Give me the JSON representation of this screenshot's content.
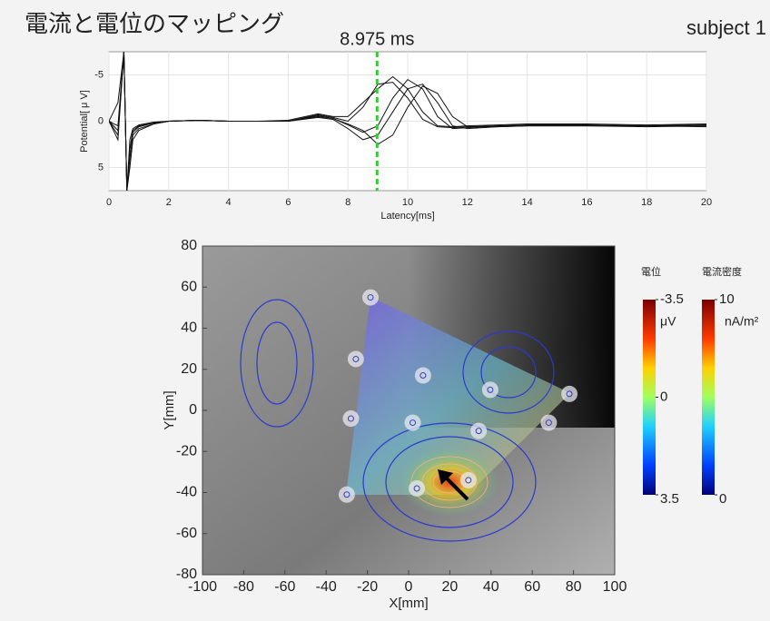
{
  "header": {
    "title": "電流と電位のマッピング",
    "subject": "subject 1"
  },
  "chart_data": [
    {
      "type": "line",
      "xlabel": "Latency[ms]",
      "ylabel": "Potential[ μ V]",
      "x": [
        0,
        0.3,
        0.5,
        0.6,
        0.7,
        0.8,
        1,
        1.5,
        2,
        3,
        4,
        5,
        6,
        7,
        7.5,
        8,
        8.5,
        9,
        9.5,
        10,
        10.5,
        11,
        11.5,
        12,
        13,
        14,
        16,
        18,
        20
      ],
      "series": [
        {
          "color": "#111111",
          "values": [
            0,
            1,
            -7.5,
            7.5,
            3,
            1,
            0.5,
            0.2,
            0,
            -0.1,
            0,
            0,
            0,
            -0.6,
            -0.3,
            0.4,
            1.2,
            0.5,
            -2.5,
            -4.5,
            -3.5,
            -0.5,
            0.8,
            0.7,
            0.5,
            0.4,
            0.4,
            0.5,
            0.4
          ]
        },
        {
          "color": "#111111",
          "values": [
            0,
            2,
            -7.5,
            7.5,
            4,
            1.5,
            0.8,
            0.3,
            0,
            -0.1,
            0,
            0,
            0,
            -0.4,
            -0.2,
            0.8,
            2,
            1.5,
            -1,
            -3.5,
            -4,
            -2,
            0.5,
            0.8,
            0.6,
            0.5,
            0.5,
            0.6,
            0.5
          ]
        },
        {
          "color": "#111111",
          "values": [
            0,
            -2,
            -7.5,
            7.5,
            2,
            0.8,
            0.4,
            0.1,
            0,
            -0.1,
            0,
            0,
            -0.1,
            -0.8,
            -0.5,
            -0.5,
            -2,
            -3.5,
            -4.8,
            -3.5,
            -1,
            0.5,
            0.6,
            0.5,
            0.4,
            0.3,
            0.3,
            0.4,
            0.3
          ]
        },
        {
          "color": "#111111",
          "values": [
            0,
            0.5,
            -7.5,
            7.5,
            5,
            2,
            1,
            0.3,
            0,
            -0.1,
            0,
            0,
            0,
            -0.5,
            -0.3,
            0.3,
            1,
            2.5,
            1.5,
            -1.5,
            -3.8,
            -3,
            -0.5,
            0.6,
            0.6,
            0.5,
            0.5,
            0.5,
            0.6
          ]
        },
        {
          "color": "#111111",
          "values": [
            0,
            1.5,
            -7.5,
            7.5,
            3,
            1.2,
            0.6,
            0.2,
            0,
            -0.1,
            0,
            0,
            0,
            -0.7,
            -0.4,
            0,
            -1.5,
            -4,
            -4.2,
            -2.5,
            -0.2,
            0.6,
            0.7,
            0.6,
            0.5,
            0.4,
            0.4,
            0.5,
            0.4
          ]
        }
      ],
      "xlim": [
        0,
        20
      ],
      "xticks": [
        0,
        2,
        4,
        6,
        8,
        10,
        12,
        14,
        16,
        18,
        20
      ],
      "ylim": [
        7.5,
        -7.5
      ],
      "yticks": [
        -5,
        0,
        5
      ],
      "grid": true,
      "marker": {
        "x": 8.975,
        "label": "8.975 ms",
        "color": "#33cc33"
      }
    },
    {
      "type": "scatter",
      "xlabel": "X[mm]",
      "ylabel": "Y[mm]",
      "x": [
        -18.5,
        -25.6,
        7,
        39.6,
        78,
        -28,
        2,
        68,
        34,
        29,
        4,
        -30
      ],
      "y": [
        55,
        25,
        17,
        10,
        8,
        -4,
        -6,
        -6,
        -10,
        -34,
        -38,
        -41
      ],
      "color": "#e8e8f0",
      "xlim": [
        -100,
        100
      ],
      "xticks": [
        -100,
        -80,
        -60,
        -40,
        -20,
        0,
        20,
        40,
        60,
        80,
        100
      ],
      "ylim": [
        -80,
        80
      ],
      "yticks": [
        -80,
        -60,
        -40,
        -20,
        0,
        20,
        40,
        60,
        80
      ],
      "colorbars": [
        {
          "label": "電位",
          "unit": "μV",
          "lim": [
            3.5,
            -3.5
          ],
          "ticks": [
            -3.5,
            0,
            3.5
          ]
        },
        {
          "label": "電流密度",
          "unit": "nA/m²",
          "lim": [
            0,
            10
          ],
          "ticks": [
            10,
            0
          ]
        }
      ]
    }
  ]
}
